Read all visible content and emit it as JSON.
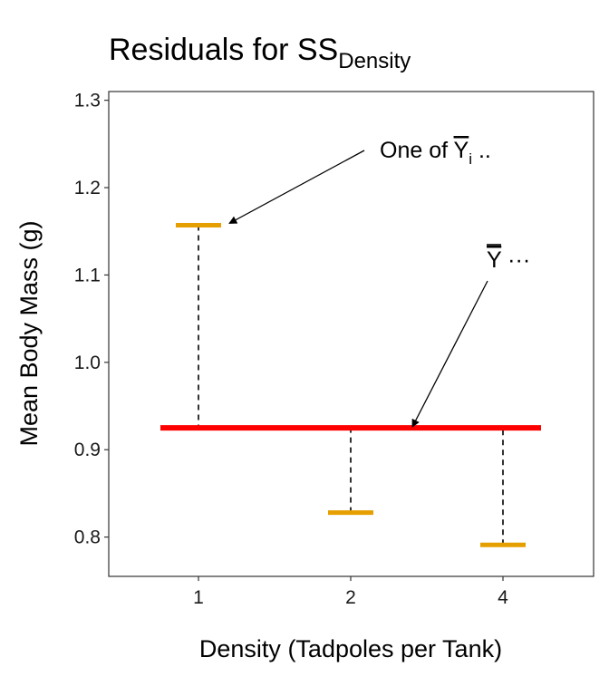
{
  "chart_data": {
    "type": "scatter",
    "title": "Residuals for SS",
    "title_subscript": "Density",
    "xlabel": "Density (Tadpoles per Tank)",
    "ylabel": "Mean Body Mass (g)",
    "categories": [
      "1",
      "2",
      "4"
    ],
    "group_means": [
      1.157,
      0.828,
      0.791
    ],
    "grand_mean": 0.925,
    "ylim": [
      0.755,
      1.31
    ],
    "yticks": [
      0.8,
      0.9,
      1.0,
      1.1,
      1.2,
      1.3
    ],
    "ytick_labels": [
      "0.8",
      "0.9",
      "1.0",
      "1.1",
      "1.2",
      "1.3"
    ],
    "grid": false,
    "colors": {
      "group_mean": "#E69F00",
      "grand_mean": "#FF0000",
      "residual": "#000000"
    },
    "annotations": [
      {
        "text": "One of Y",
        "subscript": "i",
        "suffix": " ..",
        "overline": true,
        "target_category": "1",
        "target_value": 1.157
      },
      {
        "text": "Y",
        "suffix": " ···",
        "overline": true,
        "target_category": "2",
        "target_value": 0.925
      }
    ]
  }
}
